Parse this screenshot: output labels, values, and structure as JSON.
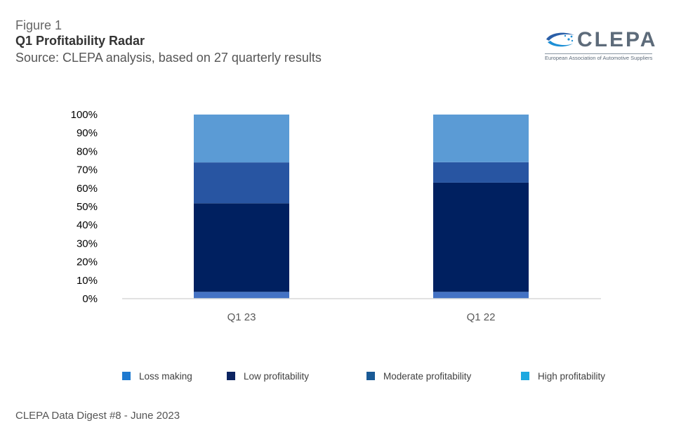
{
  "header": {
    "figure_label": "Figure 1",
    "title": "Q1 Profitability Radar",
    "source": "Source:  CLEPA analysis, based on 27 quarterly results"
  },
  "logo": {
    "wordmark": "CLEPA",
    "tagline": "European Association of Automotive Suppliers"
  },
  "footer": {
    "text": "CLEPA Data Digest #8 - June 2023"
  },
  "colors": {
    "legend_loss": "#1f7ad0",
    "legend_low": "#0c2461",
    "legend_moderate": "#1a5a96",
    "legend_high": "#1ea8e0"
  },
  "chart_data": {
    "type": "bar",
    "stacked": true,
    "categories": [
      "Q1 23",
      "Q1 22"
    ],
    "series": [
      {
        "name": "Loss making",
        "values": [
          3.7,
          3.7
        ],
        "bar_color": "#4472c4"
      },
      {
        "name": "Low profitability",
        "values": [
          48.1,
          59.3
        ],
        "bar_color": "#002060"
      },
      {
        "name": "Moderate profitability",
        "values": [
          22.2,
          11.1
        ],
        "bar_color": "#2855a2"
      },
      {
        "name": "High profitability",
        "values": [
          26.0,
          25.9
        ],
        "bar_color": "#5b9bd5"
      }
    ],
    "y_ticks": [
      "0%",
      "10%",
      "20%",
      "30%",
      "40%",
      "50%",
      "60%",
      "70%",
      "80%",
      "90%",
      "100%"
    ],
    "ylim": [
      0,
      100
    ],
    "ylabel": "",
    "xlabel": "",
    "grid": false,
    "legend_position": "bottom"
  }
}
